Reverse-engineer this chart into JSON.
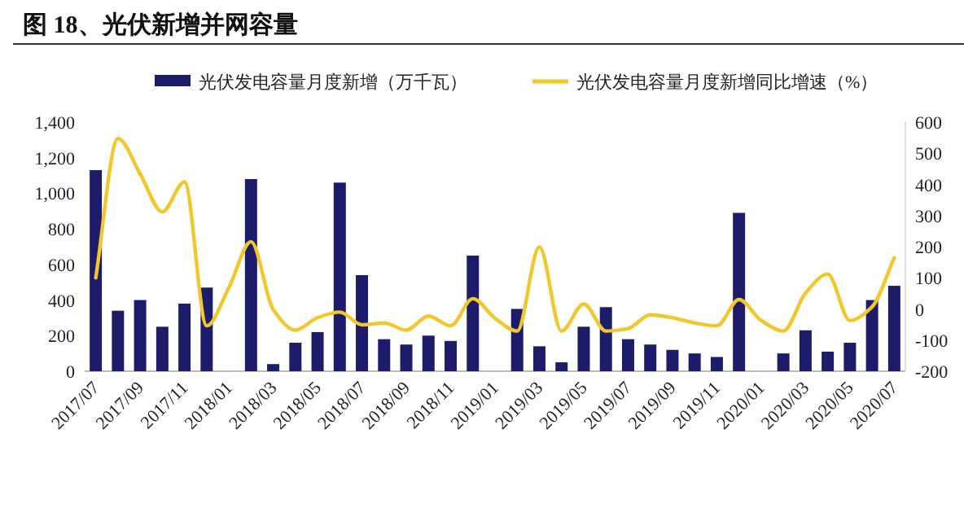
{
  "chart_data": {
    "type": "bar",
    "title": "图 18、光伏新增并网容量",
    "categories": [
      "2017/07",
      null,
      "2017/09",
      null,
      "2017/11",
      null,
      "2018/01",
      null,
      "2018/03",
      null,
      "2018/05",
      null,
      "2018/07",
      null,
      "2018/09",
      null,
      "2018/11",
      null,
      "2019/01",
      null,
      "2019/03",
      null,
      "2019/05",
      null,
      "2019/07",
      null,
      "2019/09",
      null,
      "2019/11",
      null,
      "2020/01",
      null,
      "2020/03",
      null,
      "2020/05",
      null,
      "2020/07"
    ],
    "series": [
      {
        "name": "光伏发电容量月度新增（万千瓦）",
        "color": "#1c1c6b",
        "values": [
          1130,
          340,
          400,
          250,
          380,
          470,
          null,
          1080,
          40,
          160,
          220,
          1060,
          540,
          180,
          150,
          200,
          170,
          650,
          null,
          350,
          140,
          50,
          250,
          360,
          180,
          150,
          120,
          100,
          80,
          890,
          null,
          100,
          230,
          110,
          160,
          400,
          480
        ]
      },
      {
        "name": "光伏发电容量月度新增同比增速（%）",
        "type": "line",
        "axis": "y2",
        "color": "#f2c72c",
        "values": [
          100,
          547,
          434,
          312,
          408,
          -54,
          68,
          216,
          -2,
          -68,
          -28,
          -10,
          -51,
          -45,
          -68,
          -23,
          -54,
          33,
          -30,
          -71,
          199,
          -71,
          16,
          -71,
          -63,
          -19,
          -28,
          -45,
          -54,
          30,
          -37,
          -71,
          51,
          112,
          -37,
          7,
          164
        ]
      }
    ],
    "ylim": [
      0,
      1400
    ],
    "yticks": [
      0,
      200,
      400,
      600,
      800,
      {
        "value": 1000,
        "label": "1,000"
      },
      {
        "value": 1200,
        "label": "1,200"
      },
      {
        "value": 1400,
        "label": "1,400"
      }
    ],
    "y2lim": [
      -200,
      600
    ],
    "y2ticks": [
      -200,
      -100,
      0,
      100,
      200,
      300,
      400,
      500,
      600
    ],
    "legend": "top",
    "grid": false
  }
}
